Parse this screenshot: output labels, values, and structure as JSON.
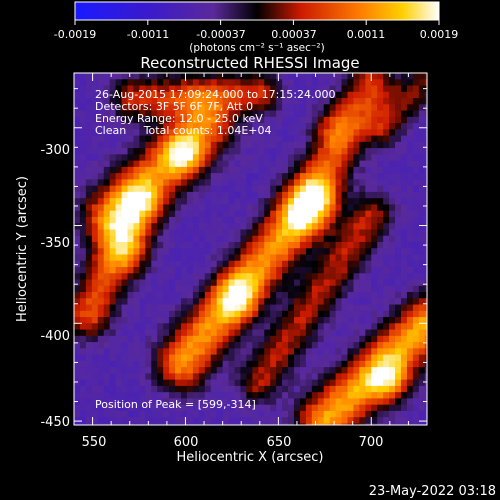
{
  "colorbar": {
    "ticks": [
      "-0.0019",
      "-0.0011",
      "-0.00037",
      "0.00037",
      "0.0011",
      "0.0019"
    ],
    "unit_label": "(photons cm⁻² s⁻¹ asec⁻²)",
    "colors": {
      "low": "#1a1aff",
      "mid": "#000000",
      "high": "#ffffff"
    }
  },
  "chart_data": {
    "type": "heatmap",
    "title": "Reconstructed RHESSI Image",
    "xlabel": "Heliocentric X (arcsec)",
    "ylabel": "Heliocentric Y (arcsec)",
    "xlim": [
      540,
      730
    ],
    "ylim": [
      -452,
      -272
    ],
    "x_ticks": [
      "550",
      "600",
      "650",
      "700"
    ],
    "y_ticks": [
      "-300",
      "-350",
      "-400",
      "-450"
    ],
    "annotations": [
      "26-Aug-2015 17:09:24.000 to 17:15:24.000",
      "Detectors: 3F 5F 6F 7F, Att 0",
      "Energy Range: 12.0 - 25.0 keV",
      "Clean     Total counts: 1.04E+04"
    ],
    "peak_label": "Position of Peak = [599,-314]",
    "peak": {
      "x": 599,
      "y": -314
    },
    "value_range": [
      -0.0019,
      0.0019
    ],
    "bright_sources": [
      {
        "x": 599,
        "y": -314,
        "level": 1.0
      },
      {
        "x": 628,
        "y": -387,
        "level": 0.95
      },
      {
        "x": 710,
        "y": -430,
        "level": 0.9
      },
      {
        "x": 570,
        "y": -365,
        "level": 0.6
      },
      {
        "x": 680,
        "y": -300,
        "level": 0.55
      }
    ]
  },
  "footer": {
    "date": "23-May-2022 03:18"
  }
}
